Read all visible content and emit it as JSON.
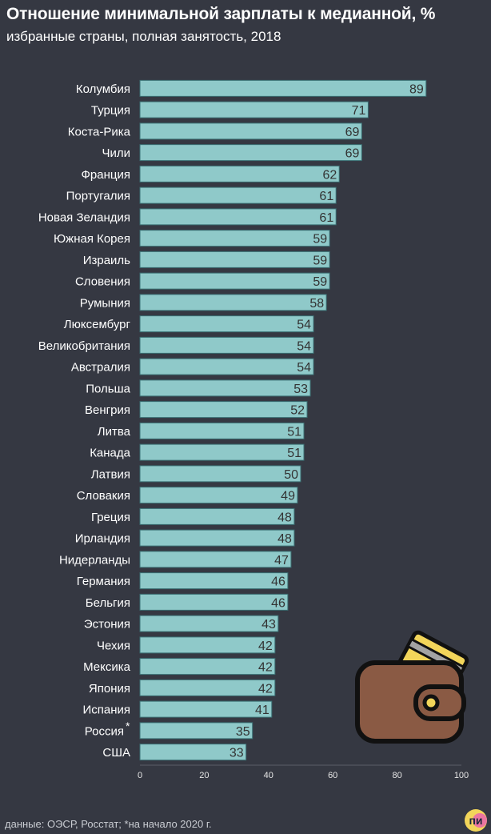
{
  "title": "Отношение минимальной зарплаты к медианной, %",
  "subtitle": "избранные страны, полная занятость, 2018",
  "footer": "данные: ОЭСР, Росстат; *на начало 2020 г.",
  "logo_text": "пи",
  "colors": {
    "background": "#353842",
    "bar_fill": "#8fc9c9",
    "bar_stroke": "#3a6e72",
    "wallet_body": "#8a5a44",
    "card": "#f2d55a"
  },
  "icons": [
    "wallet-icon",
    "logo-icon"
  ],
  "chart_data": {
    "type": "bar",
    "orientation": "horizontal",
    "categories": [
      "Колумбия",
      "Турция",
      "Коста-Рика",
      "Чили",
      "Франция",
      "Португалия",
      "Новая Зеландия",
      "Южная Корея",
      "Израиль",
      "Словения",
      "Румыния",
      "Люксембург",
      "Великобритания",
      "Австралия",
      "Польша",
      "Венгрия",
      "Литва",
      "Канада",
      "Латвия",
      "Словакия",
      "Греция",
      "Ирландия",
      "Нидерланды",
      "Германия",
      "Бельгия",
      "Эстония",
      "Чехия",
      "Мексика",
      "Япония",
      "Испания",
      "Россия",
      "США"
    ],
    "values": [
      89,
      71,
      69,
      69,
      62,
      61,
      61,
      59,
      59,
      59,
      58,
      54,
      54,
      54,
      53,
      52,
      51,
      51,
      50,
      49,
      48,
      48,
      47,
      46,
      46,
      43,
      42,
      42,
      42,
      41,
      35,
      33
    ],
    "category_markers": {
      "Россия": "*"
    },
    "xlim": [
      0,
      100
    ],
    "xticks": [
      0,
      20,
      40,
      60,
      80,
      100
    ],
    "grid": false,
    "legend": "none"
  }
}
